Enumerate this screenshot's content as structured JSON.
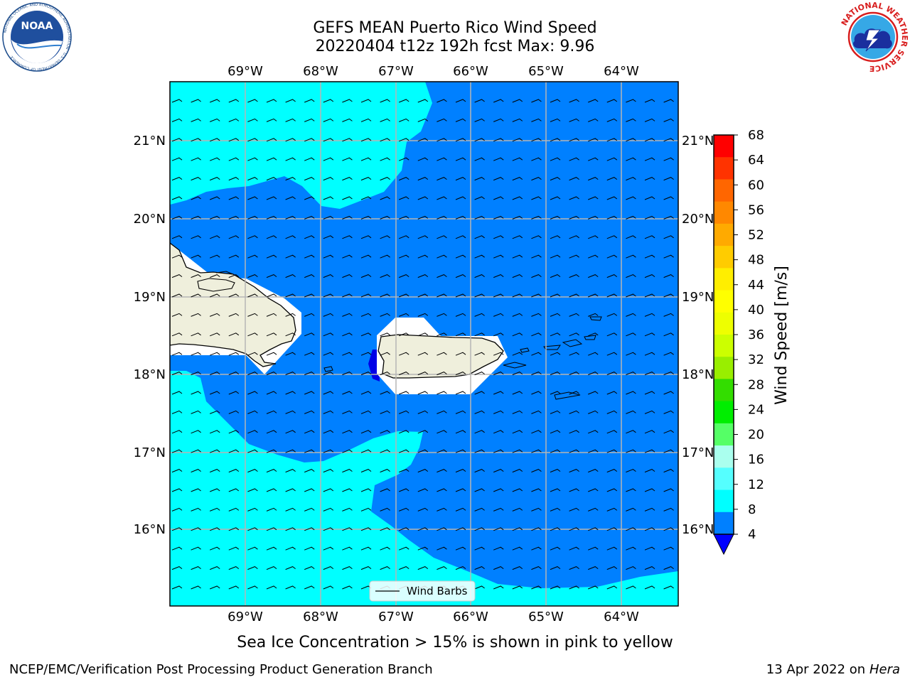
{
  "header": {
    "title_line1": "GEFS MEAN Puerto Rico Wind Speed",
    "title_line2": "20220404 t12z 192h fcst   Max: 9.96"
  },
  "logos": {
    "noaa_text": "NOAA",
    "noaa_ring_text": "NATIONAL OCEANIC AND ATMOSPHERIC ADMINISTRATION · U.S. DEPARTMENT OF COMMERCE",
    "nws_ring_text": "NATIONAL WEATHER SERVICE"
  },
  "map": {
    "lon_labels": [
      "69°W",
      "68°W",
      "67°W",
      "66°W",
      "65°W",
      "64°W"
    ],
    "lat_labels": [
      "21°N",
      "20°N",
      "19°N",
      "18°N",
      "17°N",
      "16°N"
    ],
    "legend_label": "Wind Barbs",
    "colors": {
      "fill_4_8": "#0080ff",
      "fill_8_12": "#00ffff",
      "fill_below_4": "#0000e6",
      "land": "#efefdc"
    }
  },
  "colorbar": {
    "label": "Wind Speed [m/s]",
    "ticks": [
      "68",
      "64",
      "60",
      "56",
      "52",
      "48",
      "44",
      "40",
      "36",
      "32",
      "28",
      "24",
      "20",
      "16",
      "12",
      "8",
      "4"
    ],
    "colors": [
      "#ff0000",
      "#ff3300",
      "#ff6600",
      "#ff8800",
      "#ffaa00",
      "#ffcc00",
      "#ffee00",
      "#ffff00",
      "#eeff00",
      "#ccff00",
      "#99ee00",
      "#33dd00",
      "#00ee00",
      "#55ff66",
      "#aaffee",
      "#55ffff",
      "#00ffff",
      "#0080ff"
    ],
    "under_color": "#0000ff"
  },
  "note": "Sea Ice Concentration > 15% is shown in pink to yellow",
  "footer": {
    "left": "NCEP/EMC/Verification Post Processing Product Generation Branch",
    "date": "13 Apr 2022 on ",
    "machine": "Hera"
  }
}
